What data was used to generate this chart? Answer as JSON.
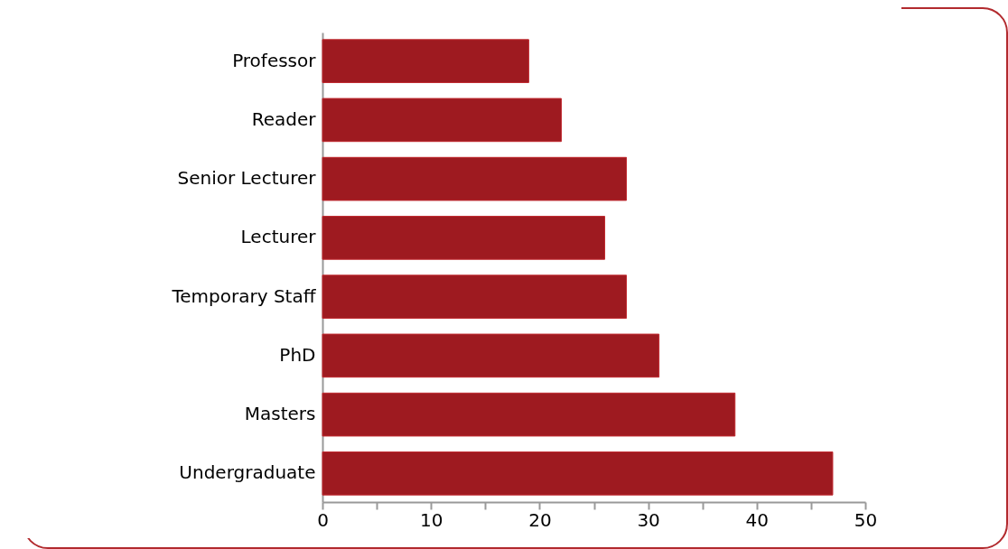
{
  "chart_data": {
    "type": "bar",
    "orientation": "horizontal",
    "categories": [
      "Professor",
      "Reader",
      "Senior Lecturer",
      "Lecturer",
      "Temporary Staff",
      "PhD",
      "Masters",
      "Undergraduate"
    ],
    "values": [
      19,
      22,
      28,
      26,
      28,
      31,
      38,
      47
    ],
    "color": "#9e1a20",
    "xlim": [
      0,
      50
    ],
    "xticks": [
      0,
      {
        "value": 5,
        "label": null
      },
      10,
      {
        "value": 15,
        "label": null
      },
      20,
      {
        "value": 25,
        "label": null
      },
      30,
      {
        "value": 35,
        "label": null
      },
      40,
      {
        "value": 45,
        "label": null
      },
      50
    ],
    "grid": false
  }
}
